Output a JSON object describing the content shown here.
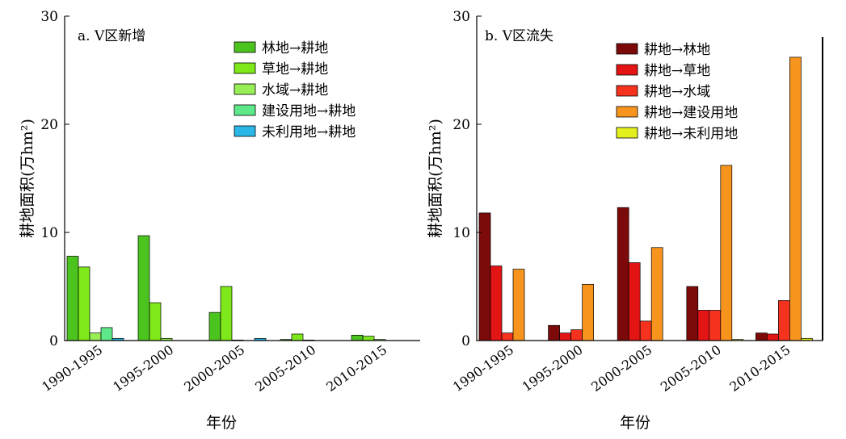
{
  "chart_data": [
    {
      "type": "bar",
      "title": "a. Ⅴ区新增",
      "xlabel": "年份",
      "ylabel": "耕地面积(万hm²)",
      "ylim": [
        0,
        30
      ],
      "yticks": [
        "0",
        "10",
        "20",
        "30"
      ],
      "categories": [
        "1990-1995",
        "1995-2000",
        "2000-2005",
        "2005-2010",
        "2010-2015"
      ],
      "legend_position": "top-right",
      "series": [
        {
          "name": "林地→耕地",
          "color": "#4cc41f",
          "values": [
            7.8,
            9.7,
            2.6,
            0.1,
            0.5
          ]
        },
        {
          "name": "草地→耕地",
          "color": "#7ee81a",
          "values": [
            6.8,
            3.5,
            5.0,
            0.6,
            0.4
          ]
        },
        {
          "name": "水域→耕地",
          "color": "#98ee55",
          "values": [
            0.7,
            0.2,
            0.05,
            0.05,
            0.1
          ]
        },
        {
          "name": "建设用地→耕地",
          "color": "#5ee88a",
          "values": [
            1.2,
            0.0,
            0.0,
            0.0,
            0.0
          ]
        },
        {
          "name": "未利用地→耕地",
          "color": "#2ab6e6",
          "values": [
            0.2,
            0.0,
            0.2,
            0.0,
            0.0
          ]
        }
      ]
    },
    {
      "type": "bar",
      "title": "b. Ⅴ区流失",
      "xlabel": "年份",
      "ylabel": "耕地面积(万hm²)",
      "ylim": [
        0,
        30
      ],
      "yticks": [
        "0",
        "10",
        "20",
        "30"
      ],
      "categories": [
        "1990-1995",
        "1995-2000",
        "2000-2005",
        "2005-2010",
        "2010-2015"
      ],
      "legend_position": "top-right",
      "series": [
        {
          "name": "耕地→林地",
          "color": "#7d0a0a",
          "values": [
            11.8,
            1.4,
            12.3,
            5.0,
            0.7
          ]
        },
        {
          "name": "耕地→草地",
          "color": "#e31414",
          "values": [
            6.9,
            0.7,
            7.2,
            2.8,
            0.6
          ]
        },
        {
          "name": "耕地→水域",
          "color": "#f5321e",
          "values": [
            0.7,
            1.0,
            1.8,
            2.8,
            3.7
          ]
        },
        {
          "name": "耕地→建设用地",
          "color": "#f7941e",
          "values": [
            6.6,
            5.2,
            8.6,
            16.2,
            26.2
          ]
        },
        {
          "name": "耕地→未利用地",
          "color": "#e3f01e",
          "values": [
            0.0,
            0.0,
            0.0,
            0.1,
            0.2
          ]
        }
      ]
    }
  ]
}
